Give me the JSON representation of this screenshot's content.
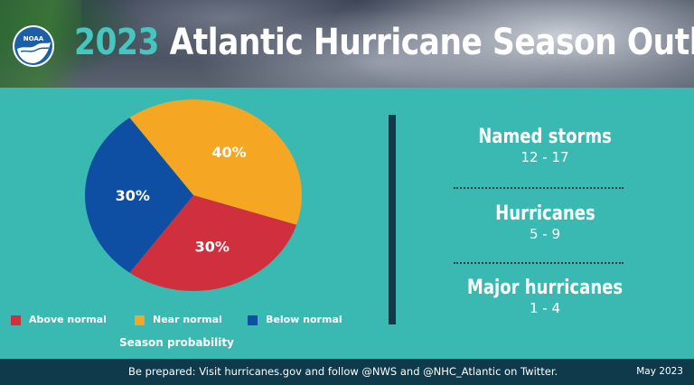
{
  "header": {
    "year": "2023",
    "title_rest": "Atlantic Hurricane Season Outlook",
    "logo_text": "NOAA"
  },
  "chart_data": {
    "type": "pie",
    "title": "Season probability",
    "categories": [
      "Above normal",
      "Near normal",
      "Below normal"
    ],
    "values": [
      30,
      40,
      30
    ],
    "labels": [
      "30%",
      "40%",
      "30%"
    ],
    "colors": [
      "#d0303e",
      "#f5a623",
      "#0f4fa3"
    ],
    "legend_position": "bottom"
  },
  "stats": [
    {
      "label": "Named storms",
      "value": "12 - 17"
    },
    {
      "label": "Hurricanes",
      "value": "5 - 9"
    },
    {
      "label": "Major hurricanes",
      "value": "1 - 4"
    }
  ],
  "footer": {
    "message": "Be prepared: Visit hurricanes.gov and follow @NWS and @NHC_Atlantic on Twitter.",
    "date": "May 2023"
  }
}
